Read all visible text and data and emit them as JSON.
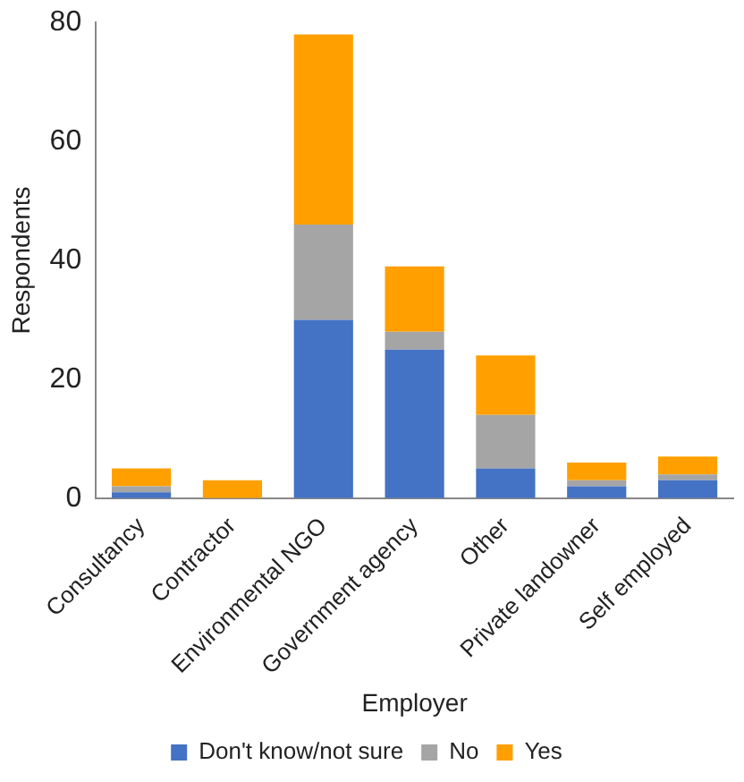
{
  "chart_data": {
    "type": "bar",
    "stacked": true,
    "xlabel": "Employer",
    "ylabel": "Respondents",
    "categories": [
      "Consultancy",
      "Contractor",
      "Environmental NGO",
      "Government agency",
      "Other",
      "Private landowner",
      "Self employed"
    ],
    "series": [
      {
        "name": "Don't know/not sure",
        "color": "#4472c4",
        "values": [
          1,
          0,
          30,
          25,
          5,
          2,
          3
        ]
      },
      {
        "name": "No",
        "color": "#a5a5a5",
        "values": [
          1,
          0,
          16,
          3,
          9,
          1,
          1
        ]
      },
      {
        "name": "Yes",
        "color": "#ffa000",
        "values": [
          3,
          3,
          32,
          11,
          10,
          3,
          3
        ]
      }
    ],
    "ylim": [
      0,
      80
    ],
    "yticks": [
      0,
      20,
      40,
      60,
      80
    ],
    "grid": false,
    "legend": "bottom"
  }
}
